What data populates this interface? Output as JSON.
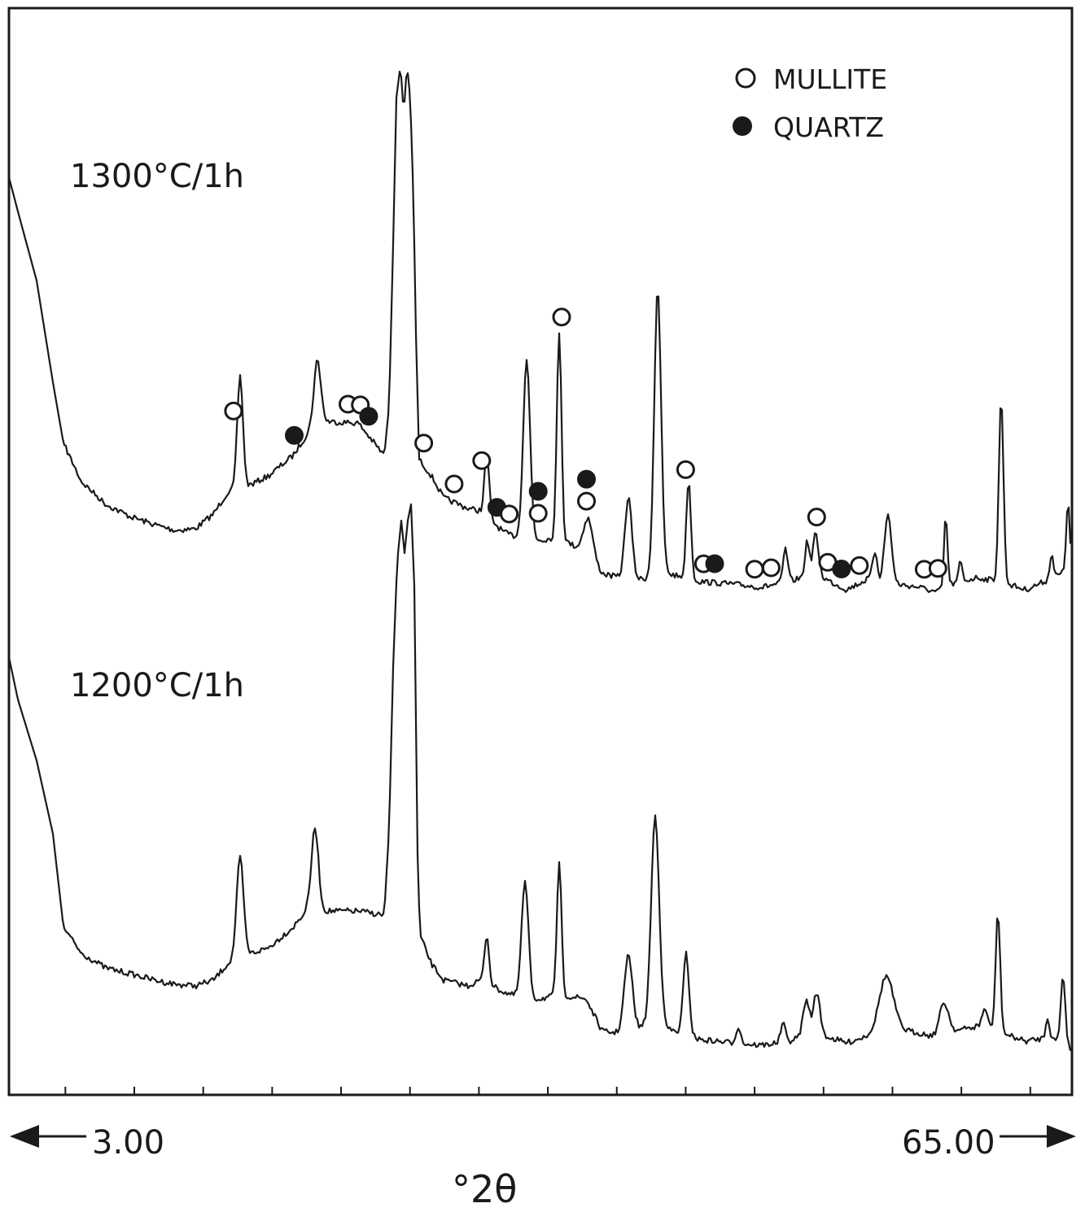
{
  "chart_data": {
    "type": "line",
    "title": "",
    "xlabel": "°2θ",
    "ylabel": "",
    "xlim": [
      3.0,
      65.0
    ],
    "range_labels": {
      "start": "3.00",
      "end": "65.00"
    },
    "grid": false,
    "legend": {
      "placement": "top-right",
      "entries": [
        {
          "marker": "open-circle",
          "label": "MULLITE"
        },
        {
          "marker": "filled-circle",
          "label": "QUARTZ"
        }
      ]
    },
    "series": [
      {
        "name": "1300°C/1h",
        "peaks": [
          {
            "x": 10.2,
            "phase": "mullite"
          },
          {
            "x": 14.6,
            "phase": "quartz"
          },
          {
            "x": 18.5,
            "phase": "mullite"
          },
          {
            "x": 19.4,
            "phase": "mullite"
          },
          {
            "x": 20.0,
            "phase": "quartz"
          },
          {
            "x": 24.0,
            "phase": "mullite"
          },
          {
            "x": 26.2,
            "phase": "mullite"
          },
          {
            "x": 28.2,
            "phase": "mullite"
          },
          {
            "x": 29.3,
            "phase": "quartz"
          },
          {
            "x": 30.2,
            "phase": "mullite"
          },
          {
            "x": 32.3,
            "phase": "mullite"
          },
          {
            "x": 32.3,
            "phase": "quartz"
          },
          {
            "x": 34.0,
            "phase": "mullite"
          },
          {
            "x": 35.8,
            "phase": "mullite"
          },
          {
            "x": 35.8,
            "phase": "quartz"
          },
          {
            "x": 43.0,
            "phase": "mullite"
          },
          {
            "x": 44.3,
            "phase": "mullite"
          },
          {
            "x": 45.1,
            "phase": "quartz"
          },
          {
            "x": 48.0,
            "phase": "mullite"
          },
          {
            "x": 49.2,
            "phase": "mullite"
          },
          {
            "x": 52.5,
            "phase": "mullite"
          },
          {
            "x": 53.3,
            "phase": "mullite"
          },
          {
            "x": 54.3,
            "phase": "quartz"
          },
          {
            "x": 55.6,
            "phase": "mullite"
          },
          {
            "x": 60.3,
            "phase": "mullite"
          },
          {
            "x": 61.3,
            "phase": "mullite"
          }
        ]
      },
      {
        "name": "1200°C/1h",
        "peaks": []
      }
    ]
  },
  "colors": {
    "ink": "#1a1a1a",
    "background": "#ffffff"
  }
}
